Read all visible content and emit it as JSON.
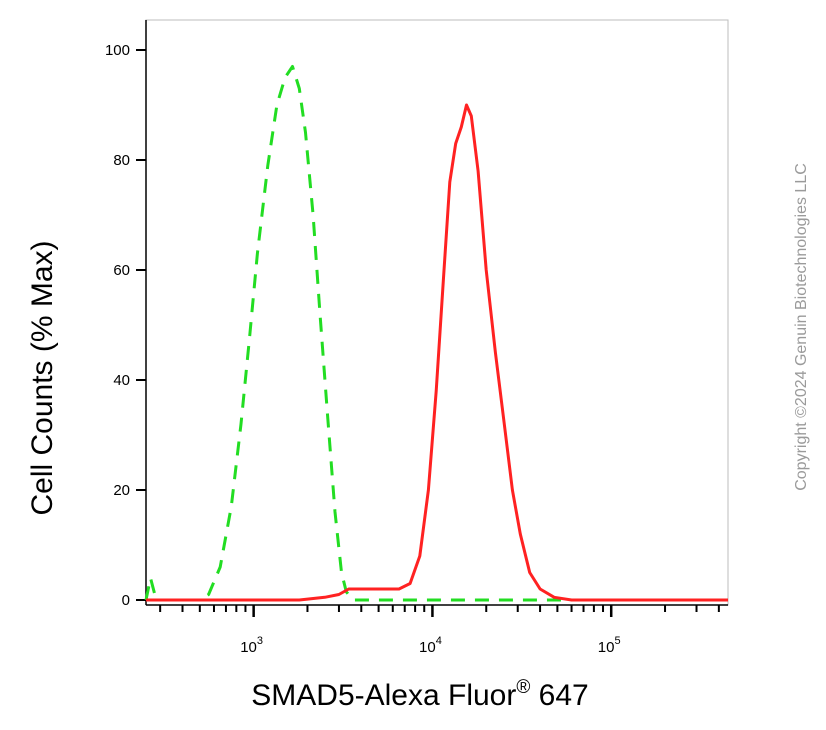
{
  "chart_data": {
    "type": "line",
    "xlabel": "SMAD5-Alexa Fluor",
    "xlabel_sup": "®",
    "xlabel_suffix": " 647",
    "ylabel": "Cell Counts (% Max)",
    "x_scale": "log",
    "xlim": [
      250,
      450000
    ],
    "ylim": [
      0,
      100
    ],
    "y_ticks": [
      0,
      20,
      40,
      60,
      80,
      100
    ],
    "x_ticks": [
      {
        "value": 1000,
        "base": "10",
        "exp": "3"
      },
      {
        "value": 10000,
        "base": "10",
        "exp": "4"
      },
      {
        "value": 100000,
        "base": "10",
        "exp": "5"
      }
    ],
    "grid": false,
    "series": [
      {
        "color": "#22dd22",
        "style": "dashed",
        "points": [
          [
            250,
            0
          ],
          [
            265,
            4
          ],
          [
            280,
            1
          ],
          [
            300,
            0
          ],
          [
            400,
            0
          ],
          [
            500,
            0
          ],
          [
            560,
            1
          ],
          [
            650,
            6
          ],
          [
            750,
            17
          ],
          [
            850,
            32
          ],
          [
            950,
            48
          ],
          [
            1050,
            63
          ],
          [
            1200,
            79
          ],
          [
            1350,
            90
          ],
          [
            1500,
            95
          ],
          [
            1650,
            97
          ],
          [
            1800,
            93
          ],
          [
            1950,
            85
          ],
          [
            2150,
            70
          ],
          [
            2350,
            52
          ],
          [
            2600,
            33
          ],
          [
            2850,
            16
          ],
          [
            3100,
            5
          ],
          [
            3300,
            1.5
          ],
          [
            3600,
            0
          ],
          [
            5000,
            0
          ],
          [
            20000,
            0
          ],
          [
            100000,
            0
          ],
          [
            450000,
            0
          ]
        ]
      },
      {
        "color": "#ff2222",
        "style": "solid",
        "points": [
          [
            250,
            0
          ],
          [
            1800,
            0
          ],
          [
            2500,
            0.5
          ],
          [
            3000,
            1
          ],
          [
            3400,
            2
          ],
          [
            3800,
            2
          ],
          [
            5000,
            2
          ],
          [
            6500,
            2
          ],
          [
            7500,
            3
          ],
          [
            8500,
            8
          ],
          [
            9500,
            20
          ],
          [
            10500,
            38
          ],
          [
            11500,
            58
          ],
          [
            12500,
            76
          ],
          [
            13500,
            83
          ],
          [
            14500,
            86
          ],
          [
            15500,
            90
          ],
          [
            16500,
            88
          ],
          [
            18000,
            78
          ],
          [
            20000,
            60
          ],
          [
            22500,
            45
          ],
          [
            25000,
            33
          ],
          [
            28000,
            20
          ],
          [
            31000,
            12
          ],
          [
            35000,
            5
          ],
          [
            40000,
            2
          ],
          [
            48000,
            0.5
          ],
          [
            60000,
            0
          ],
          [
            450000,
            0
          ]
        ]
      }
    ]
  },
  "watermark": "Copyright ©2024 Genuin Biotechnologies LLC"
}
